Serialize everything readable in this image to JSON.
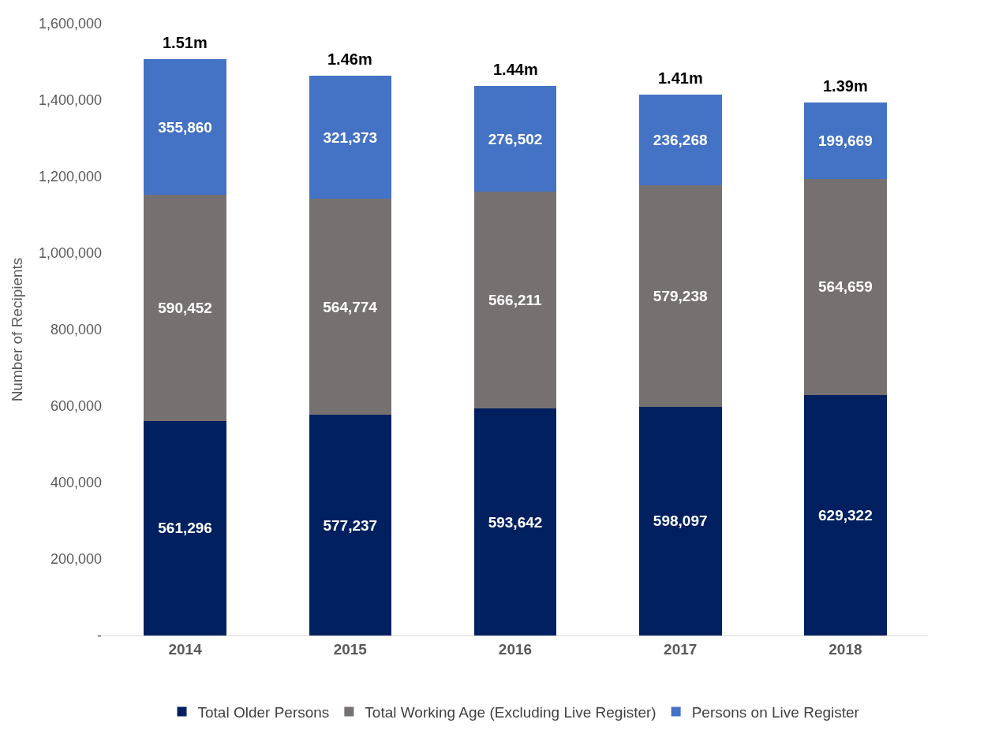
{
  "chart_data": {
    "type": "bar",
    "stacked": true,
    "ylabel": "Number of Recipients",
    "categories": [
      "2014",
      "2015",
      "2016",
      "2017",
      "2018"
    ],
    "series": [
      {
        "name": "Total Older Persons",
        "color": "#002060",
        "values": [
          561296,
          577237,
          593642,
          598097,
          629322
        ],
        "value_labels": [
          "561,296",
          "577,237",
          "593,642",
          "598,097",
          "629,322"
        ]
      },
      {
        "name": "Total Working Age (Excluding Live Register)",
        "color": "#767171",
        "values": [
          590452,
          564774,
          566211,
          579238,
          564659
        ],
        "value_labels": [
          "590,452",
          "564,774",
          "566,211",
          "579,238",
          "564,659"
        ]
      },
      {
        "name": "Persons on Live Register",
        "color": "#4472c4",
        "values": [
          355860,
          321373,
          276502,
          236268,
          199669
        ],
        "value_labels": [
          "355,860",
          "321,373",
          "276,502",
          "236,268",
          "199,669"
        ]
      }
    ],
    "totals": [
      "1.51m",
      "1.46m",
      "1.44m",
      "1.41m",
      "1.39m"
    ],
    "ylim": [
      0,
      1600000
    ],
    "yticks": [
      {
        "value": 0,
        "label": "-"
      },
      {
        "value": 200000,
        "label": "200,000"
      },
      {
        "value": 400000,
        "label": "400,000"
      },
      {
        "value": 600000,
        "label": "600,000"
      },
      {
        "value": 800000,
        "label": "800,000"
      },
      {
        "value": 1000000,
        "label": "1,000,000"
      },
      {
        "value": 1200000,
        "label": "1,200,000"
      },
      {
        "value": 1400000,
        "label": "1,400,000"
      },
      {
        "value": 1600000,
        "label": "1,600,000"
      }
    ],
    "legend": "bottom"
  }
}
